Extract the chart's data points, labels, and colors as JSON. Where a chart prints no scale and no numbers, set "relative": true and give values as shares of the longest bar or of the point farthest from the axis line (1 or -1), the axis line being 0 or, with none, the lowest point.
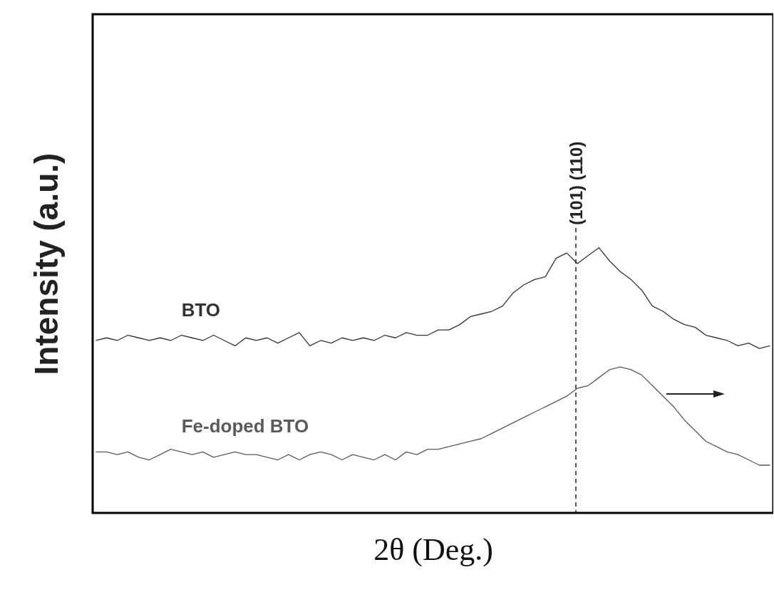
{
  "chart_data": {
    "type": "line",
    "xlabel": "2θ (Deg.)",
    "ylabel": "Intensity (a.u.)",
    "relative": true,
    "tick_labels": false,
    "grid": false,
    "legend": false,
    "marker": "none",
    "line_style": "solid",
    "categories": [
      null,
      null,
      null,
      null,
      null,
      null,
      null,
      null,
      null,
      null,
      null,
      null,
      null,
      null,
      null,
      null,
      null,
      null,
      null,
      null,
      null,
      null,
      null,
      null,
      null,
      null,
      null,
      null,
      null,
      null,
      null,
      null,
      null,
      null,
      null,
      null,
      null,
      null,
      null,
      null,
      null,
      null,
      null,
      null,
      null,
      null,
      null,
      null,
      null,
      null,
      null,
      null,
      null,
      null,
      null,
      null,
      null,
      null,
      null,
      null,
      null,
      null,
      null,
      null
    ],
    "series": [
      {
        "name": "BTO",
        "color": "#333333",
        "values": [
          0.65,
          0.66,
          0.65,
          0.67,
          0.66,
          0.65,
          0.66,
          0.65,
          0.67,
          0.66,
          0.65,
          0.67,
          0.65,
          0.63,
          0.66,
          0.65,
          0.66,
          0.64,
          0.66,
          0.68,
          0.63,
          0.65,
          0.64,
          0.66,
          0.65,
          0.66,
          0.65,
          0.67,
          0.66,
          0.68,
          0.67,
          0.67,
          0.69,
          0.69,
          0.71,
          0.74,
          0.75,
          0.76,
          0.78,
          0.83,
          0.86,
          0.88,
          0.89,
          0.96,
          0.98,
          0.94,
          0.97,
          1.0,
          0.95,
          0.91,
          0.88,
          0.84,
          0.78,
          0.76,
          0.73,
          0.71,
          0.7,
          0.67,
          0.66,
          0.65,
          0.63,
          0.64,
          0.62,
          0.63
        ]
      },
      {
        "name": "Fe-doped BTO",
        "color": "#5a5a5a",
        "values": [
          0.23,
          0.23,
          0.22,
          0.23,
          0.21,
          0.2,
          0.22,
          0.24,
          0.23,
          0.22,
          0.23,
          0.21,
          0.22,
          0.23,
          0.22,
          0.22,
          0.21,
          0.2,
          0.22,
          0.2,
          0.22,
          0.23,
          0.22,
          0.2,
          0.22,
          0.21,
          0.2,
          0.22,
          0.2,
          0.23,
          0.22,
          0.24,
          0.24,
          0.25,
          0.26,
          0.27,
          0.28,
          0.3,
          0.32,
          0.34,
          0.36,
          0.38,
          0.4,
          0.42,
          0.44,
          0.47,
          0.48,
          0.51,
          0.54,
          0.55,
          0.54,
          0.52,
          0.48,
          0.44,
          0.4,
          0.35,
          0.31,
          0.27,
          0.25,
          0.23,
          0.22,
          0.2,
          0.18,
          0.18
        ]
      }
    ],
    "annotations": [
      "(101) (110)"
    ]
  }
}
